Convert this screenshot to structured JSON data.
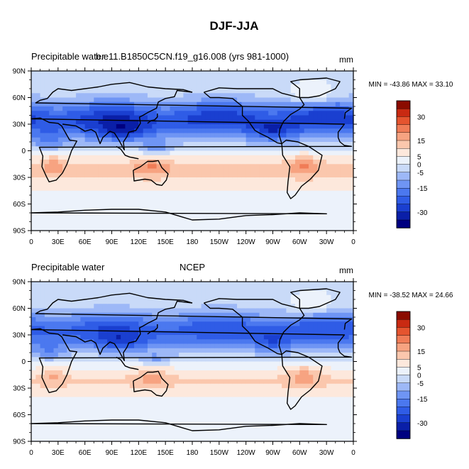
{
  "figure": {
    "title": "DJF-JJA"
  },
  "colors": {
    "fill_levels": [
      -35,
      -30,
      -25,
      -20,
      -15,
      -10,
      -5,
      0,
      5,
      10,
      15,
      20,
      25,
      30,
      35
    ],
    "palette": [
      "#000080",
      "#0a1fa8",
      "#1a3fd0",
      "#2f5ce6",
      "#4b78ef",
      "#6f95f4",
      "#9db8f7",
      "#c9daf8",
      "#ecf2fb",
      "#fde8dc",
      "#fbc7ad",
      "#f7a381",
      "#f07c57",
      "#e5542f",
      "#c92a12",
      "#8b0b00"
    ]
  },
  "chart_data": [
    {
      "type": "heatmap",
      "panel": "top",
      "left_title": "Precipitable water",
      "center_title": "b.e11.B1850C5CN.f19_g16.008 (yrs 981-1000)",
      "right_title": "mm",
      "min_max_text": "MIN = -43.86 MAX =  33.10",
      "min": -43.86,
      "max": 33.1,
      "x_ticks": [
        "0",
        "30E",
        "60E",
        "90E",
        "120E",
        "150E",
        "180",
        "150W",
        "120W",
        "90W",
        "60W",
        "30W",
        "0"
      ],
      "y_ticks": [
        "90N",
        "60N",
        "30N",
        "0",
        "30S",
        "60S",
        "90S"
      ],
      "colorbar_labels": [
        "30",
        "15",
        "5",
        "0",
        "-5",
        "-15",
        "-30"
      ]
    },
    {
      "type": "heatmap",
      "panel": "bottom",
      "left_title": "Precipitable water",
      "center_title": "NCEP",
      "right_title": "mm",
      "min_max_text": "MIN = -38.52 MAX =  24.66",
      "min": -38.52,
      "max": 24.66,
      "x_ticks": [
        "0",
        "30E",
        "60E",
        "90E",
        "120E",
        "150E",
        "180",
        "150W",
        "120W",
        "90W",
        "60W",
        "30W",
        "0"
      ],
      "y_ticks": [
        "90N",
        "60N",
        "30N",
        "0",
        "30S",
        "60S",
        "90S"
      ],
      "colorbar_labels": [
        "30",
        "15",
        "5",
        "0",
        "-5",
        "-15",
        "-30"
      ]
    }
  ]
}
